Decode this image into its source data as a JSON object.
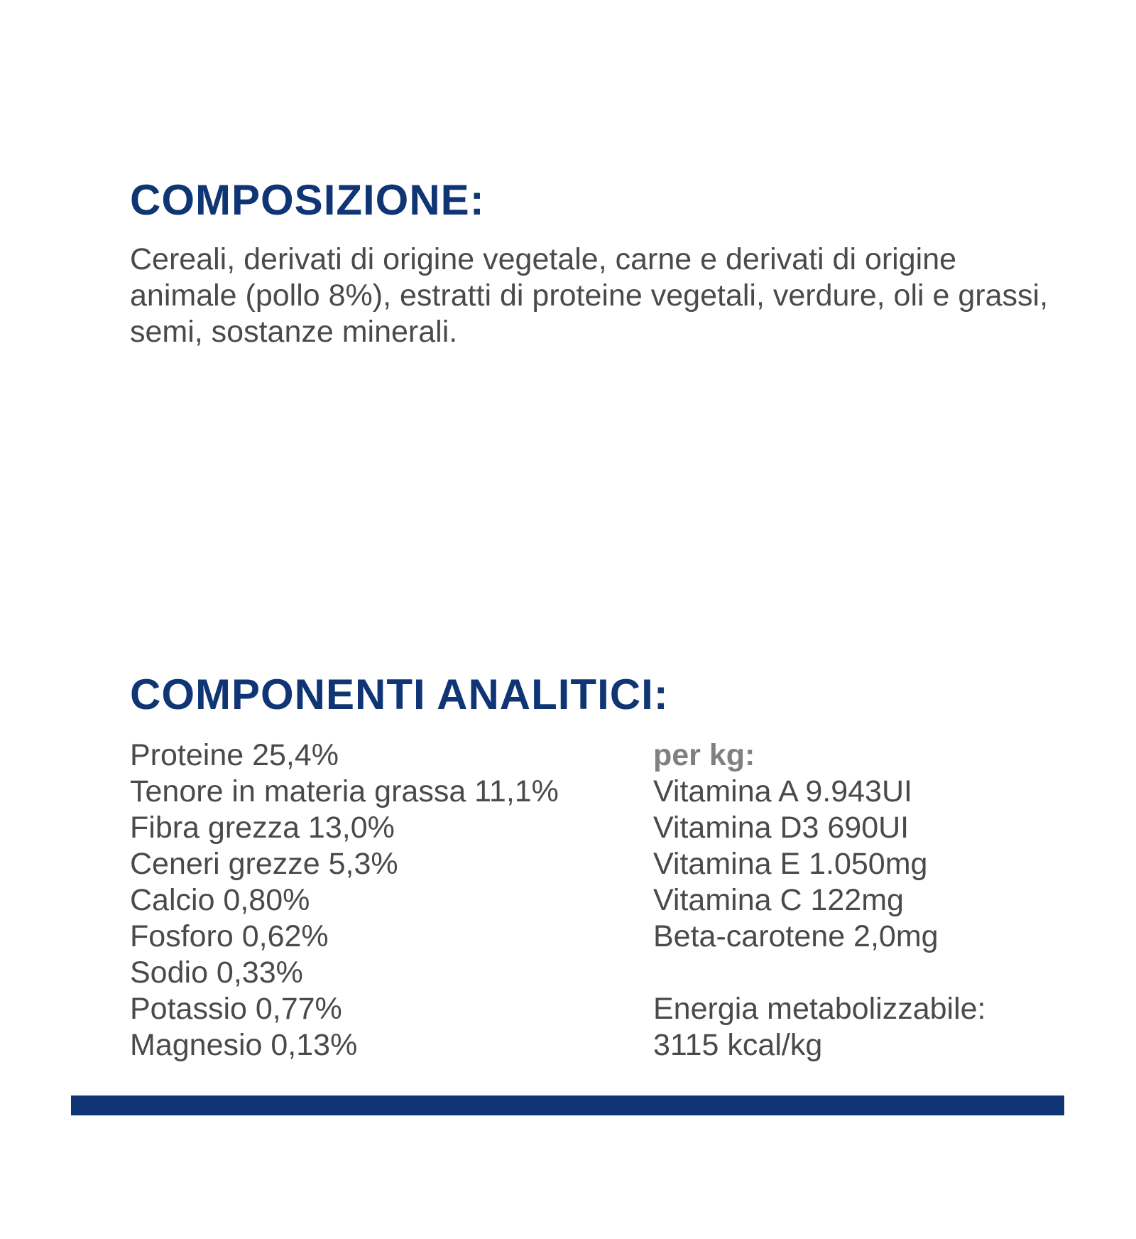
{
  "composition": {
    "title": "COMPOSIZIONE:",
    "text": "Cereali, derivati di origine vegetale, carne e derivati di origine animale (pollo 8%), estratti di proteine vegetali, verdure, oli e grassi, semi, sostanze minerali."
  },
  "analytics": {
    "title": "COMPONENTI ANALITICI:",
    "left": [
      "Proteine 25,4%",
      "Tenore in materia grassa 11,1%",
      "Fibra grezza 13,0%",
      "Ceneri grezze 5,3%",
      "Calcio 0,80%",
      "Fosforo 0,62%",
      "Sodio 0,33%",
      "Potassio 0,77%",
      "Magnesio 0,13%"
    ],
    "per_kg_label": "per kg:",
    "right": [
      "Vitamina A 9.943UI",
      "Vitamina D3 690UI",
      "Vitamina E 1.050mg",
      "Vitamina C 122mg",
      "Beta-carotene 2,0mg"
    ],
    "energy_label": "Energia metabolizzabile:",
    "energy_value": "3115 kcal/kg"
  },
  "colors": {
    "heading": "#0f3575",
    "text": "#4a4a4a",
    "subheading": "#808080",
    "bar": "#0f3575"
  }
}
